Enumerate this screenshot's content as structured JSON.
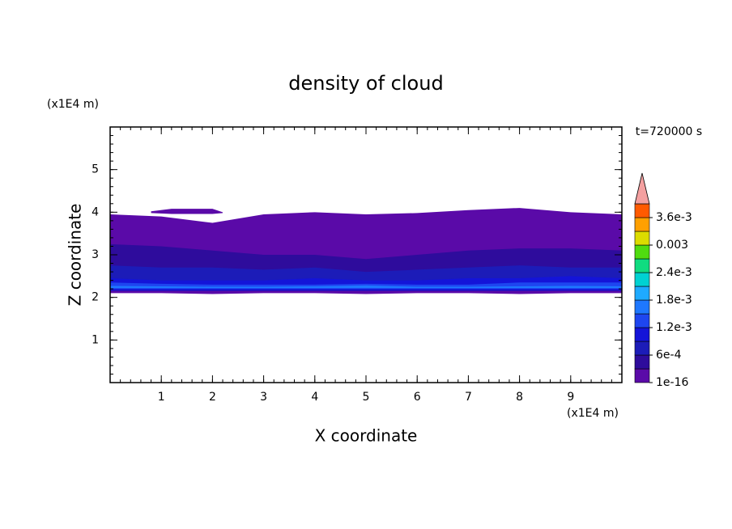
{
  "chart_data": {
    "type": "contour",
    "title": "density of cloud",
    "xlabel": "X coordinate",
    "ylabel": "Z coordinate",
    "xunit": "(x1E4 m)",
    "yunit": "(x1E4 m)",
    "annotation": "t=720000 s",
    "xlim": [
      0,
      10
    ],
    "xticks": [
      1,
      2,
      3,
      4,
      5,
      6,
      7,
      8,
      9
    ],
    "ylim": [
      0,
      6
    ],
    "yticks": [
      1,
      2,
      3,
      4,
      5
    ],
    "colors": [
      "#5a0aa8",
      "#2e0c9c",
      "#1c1cb8",
      "#1414d8",
      "#1e46f0",
      "#1e78ff",
      "#1eaaff",
      "#00d2d2",
      "#10dc80",
      "#50dc10",
      "#dcdc00",
      "#ffa000",
      "#ff5a00"
    ],
    "extend_color": "#f4a0a0",
    "cbar_ticks": [
      {
        "value": 1e-16,
        "label": "1e-16"
      },
      {
        "value": 0.0006,
        "label": "6e-4"
      },
      {
        "value": 0.0012,
        "label": "1.2e-3"
      },
      {
        "value": 0.0018,
        "label": "1.8e-3"
      },
      {
        "value": 0.0024,
        "label": "2.4e-3"
      },
      0.003,
      {
        "value": 0.0036,
        "label": "3.6e-3"
      }
    ],
    "regions": [
      {
        "level": 0,
        "x": [
          0,
          1,
          2,
          3,
          4,
          5,
          6,
          7,
          8,
          9,
          10
        ],
        "top": [
          3.95,
          3.9,
          3.75,
          3.95,
          4.0,
          3.95,
          3.98,
          4.05,
          4.1,
          4.0,
          3.95
        ],
        "bottom": [
          2.1,
          2.1,
          2.08,
          2.1,
          2.1,
          2.08,
          2.1,
          2.1,
          2.08,
          2.1,
          2.1
        ]
      },
      {
        "level": 0,
        "x": [
          0.8,
          1.2,
          2.0,
          2.2
        ],
        "top": [
          4.02,
          4.08,
          4.08,
          4.0
        ],
        "bottom": [
          3.98,
          3.96,
          3.96,
          3.98
        ]
      },
      {
        "level": 1,
        "x": [
          0,
          1,
          2,
          3,
          4,
          5,
          6,
          7,
          8,
          9,
          10
        ],
        "top": [
          3.25,
          3.2,
          3.1,
          3.0,
          3.0,
          2.9,
          3.0,
          3.1,
          3.15,
          3.15,
          3.1
        ],
        "bottom": [
          2.15,
          2.15,
          2.15,
          2.15,
          2.15,
          2.15,
          2.15,
          2.15,
          2.15,
          2.15,
          2.15
        ]
      },
      {
        "level": 2,
        "x": [
          0,
          1,
          2,
          3,
          4,
          5,
          6,
          7,
          8,
          9,
          10
        ],
        "top": [
          2.75,
          2.7,
          2.7,
          2.65,
          2.7,
          2.6,
          2.65,
          2.7,
          2.75,
          2.7,
          2.7
        ],
        "bottom": [
          2.18,
          2.18,
          2.18,
          2.18,
          2.18,
          2.18,
          2.18,
          2.18,
          2.18,
          2.18,
          2.18
        ]
      },
      {
        "level": 3,
        "x": [
          0,
          1,
          2,
          3,
          4,
          5,
          6,
          7,
          8,
          9,
          10
        ],
        "top": [
          2.45,
          2.4,
          2.4,
          2.4,
          2.45,
          2.4,
          2.4,
          2.45,
          2.45,
          2.5,
          2.45
        ],
        "bottom": [
          2.16,
          2.16,
          2.16,
          2.16,
          2.16,
          2.16,
          2.16,
          2.16,
          2.16,
          2.16,
          2.16
        ]
      },
      {
        "level": 4,
        "x": [
          0,
          1,
          2,
          3,
          4,
          5,
          6,
          7,
          8,
          9,
          10
        ],
        "top": [
          2.35,
          2.32,
          2.3,
          2.3,
          2.3,
          2.32,
          2.3,
          2.3,
          2.35,
          2.35,
          2.35
        ],
        "bottom": [
          2.2,
          2.2,
          2.2,
          2.2,
          2.2,
          2.2,
          2.2,
          2.2,
          2.2,
          2.2,
          2.2
        ]
      },
      {
        "level": 5,
        "x": [
          0,
          1,
          2,
          3,
          4,
          5,
          6,
          7,
          8,
          9,
          10
        ],
        "top": [
          2.27,
          2.26,
          2.25,
          2.25,
          2.26,
          2.28,
          2.25,
          2.25,
          2.26,
          2.27,
          2.26
        ],
        "bottom": [
          2.22,
          2.22,
          2.22,
          2.22,
          2.22,
          2.22,
          2.22,
          2.22,
          2.22,
          2.22,
          2.22
        ]
      }
    ]
  }
}
